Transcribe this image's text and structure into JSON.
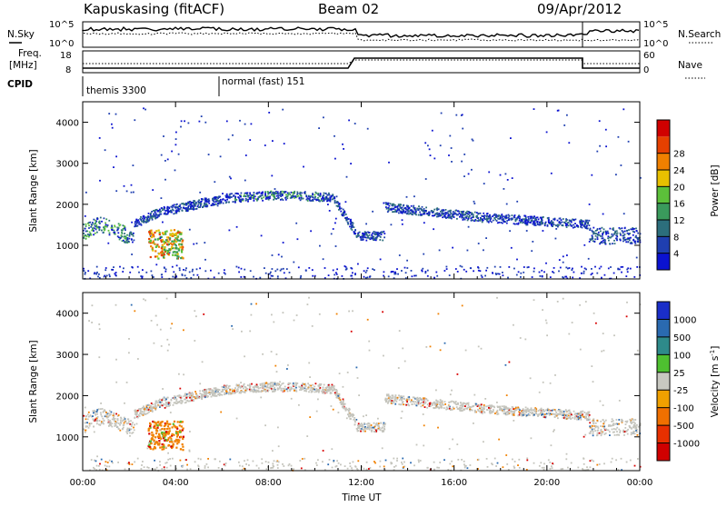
{
  "header": {
    "station": "Kapuskasing (fitACF)",
    "beam": "Beam 02",
    "date": "09/Apr/2012"
  },
  "summary_panels": {
    "nsky": {
      "label": "N.Sky",
      "ticks": [
        "10^5",
        "10^0"
      ]
    },
    "nsearch": {
      "label": "N.Search",
      "ticks": [
        "10^5",
        "10^0"
      ]
    },
    "freq": {
      "label_line1": "Freq.",
      "label_line2": "[MHz]",
      "ticks": [
        "18",
        "8"
      ]
    },
    "nave": {
      "label": "Nave",
      "ticks": [
        "60",
        "0"
      ]
    },
    "cpid": {
      "label": "CPID",
      "modes": [
        "themis 3300",
        "normal (fast) 151"
      ]
    }
  },
  "chart_data": [
    {
      "type": "heatmap",
      "title": "",
      "ylabel": "Slant Range [km]",
      "xlabel": "",
      "xlim": [
        0,
        24
      ],
      "ylim": [
        180,
        4500
      ],
      "x_ticks": [
        "00:00",
        "04:00",
        "08:00",
        "12:00",
        "16:00",
        "20:00",
        "00:00"
      ],
      "y_ticks": [
        "1000",
        "2000",
        "3000",
        "4000"
      ],
      "colorbar": {
        "label": "Power [dB]",
        "ticks": [
          "4",
          "8",
          "12",
          "16",
          "20",
          "24",
          "28"
        ],
        "colors": [
          "#0b12d0",
          "#1f3fb0",
          "#2c6e7c",
          "#3a9a5c",
          "#5cc03a",
          "#e8c000",
          "#f08000",
          "#e64000",
          "#d00000"
        ]
      },
      "grid": false
    },
    {
      "type": "heatmap",
      "title": "",
      "ylabel": "Slant Range [km]",
      "xlabel": "Time UT",
      "xlim": [
        0,
        24
      ],
      "ylim": [
        180,
        4500
      ],
      "x_ticks": [
        "00:00",
        "04:00",
        "08:00",
        "12:00",
        "16:00",
        "20:00",
        "00:00"
      ],
      "y_ticks": [
        "1000",
        "2000",
        "3000",
        "4000"
      ],
      "colorbar": {
        "label": "Velocity [m s^-1]",
        "ticks": [
          "1000",
          "500",
          "100",
          "25",
          "-25",
          "-100",
          "-500",
          "-1000"
        ],
        "colors": [
          "#1a2ec8",
          "#2a6ab0",
          "#2e8a8a",
          "#4ec030",
          "#c8c8c0",
          "#f0a000",
          "#f07000",
          "#e83000",
          "#d00000"
        ]
      },
      "grid": false
    }
  ],
  "colors": {
    "power_blue": "#1030c8",
    "power_green": "#3aa050",
    "power_yellow": "#e8c800",
    "power_orange": "#f07800",
    "vel_grey": "#c4c4bc",
    "vel_orange": "#f08000",
    "vel_red": "#d80000"
  }
}
